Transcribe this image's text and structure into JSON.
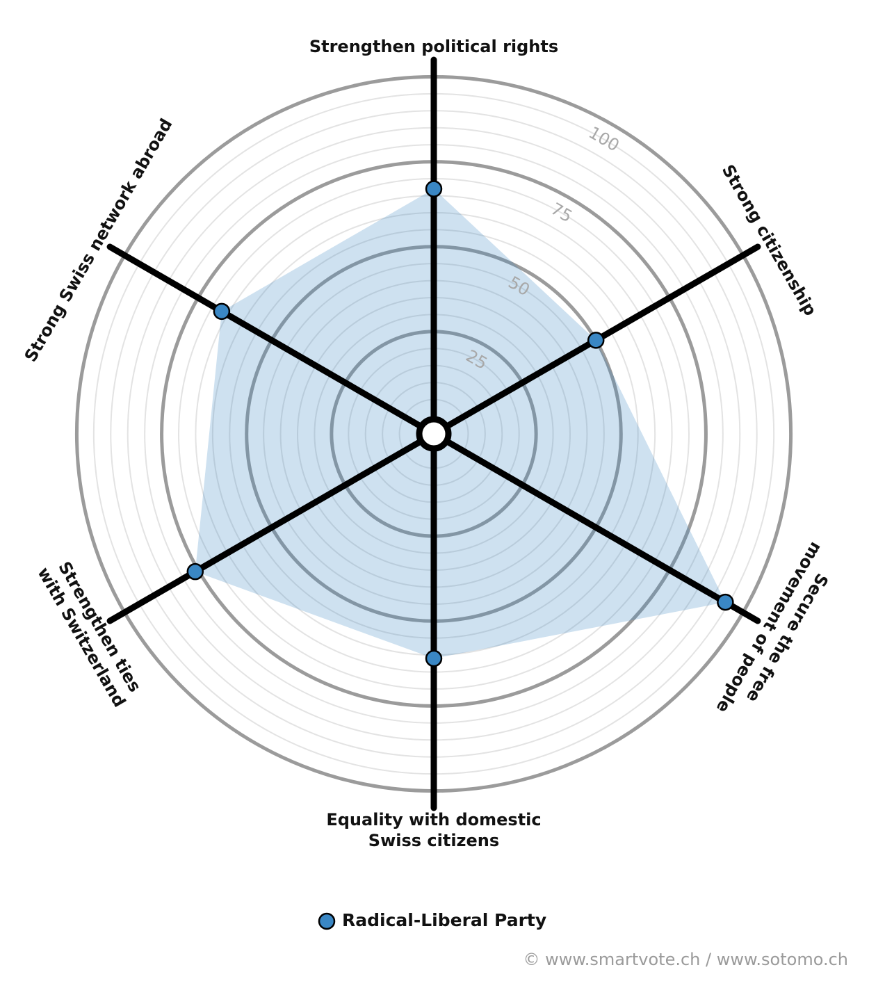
{
  "chart_data": {
    "type": "radar",
    "categories": [
      [
        "Strengthen political rights"
      ],
      [
        "Strong citizenship"
      ],
      [
        "Secure the free",
        "movement of people"
      ],
      [
        "Equality with domestic",
        "Swiss citizens"
      ],
      [
        "Strengthen ties",
        "with Switzerland"
      ],
      [
        "Strong Swiss network abroad"
      ]
    ],
    "series": [
      {
        "name": "Radical-Liberal Party",
        "color": "#3a87c4",
        "values": [
          67,
          50,
          94,
          61,
          76,
          67
        ]
      }
    ],
    "ylim": [
      0,
      105
    ],
    "yticks": [
      25,
      50,
      75,
      100
    ],
    "grid": true,
    "credit": "© www.smartvote.ch / www.sotomo.ch"
  }
}
